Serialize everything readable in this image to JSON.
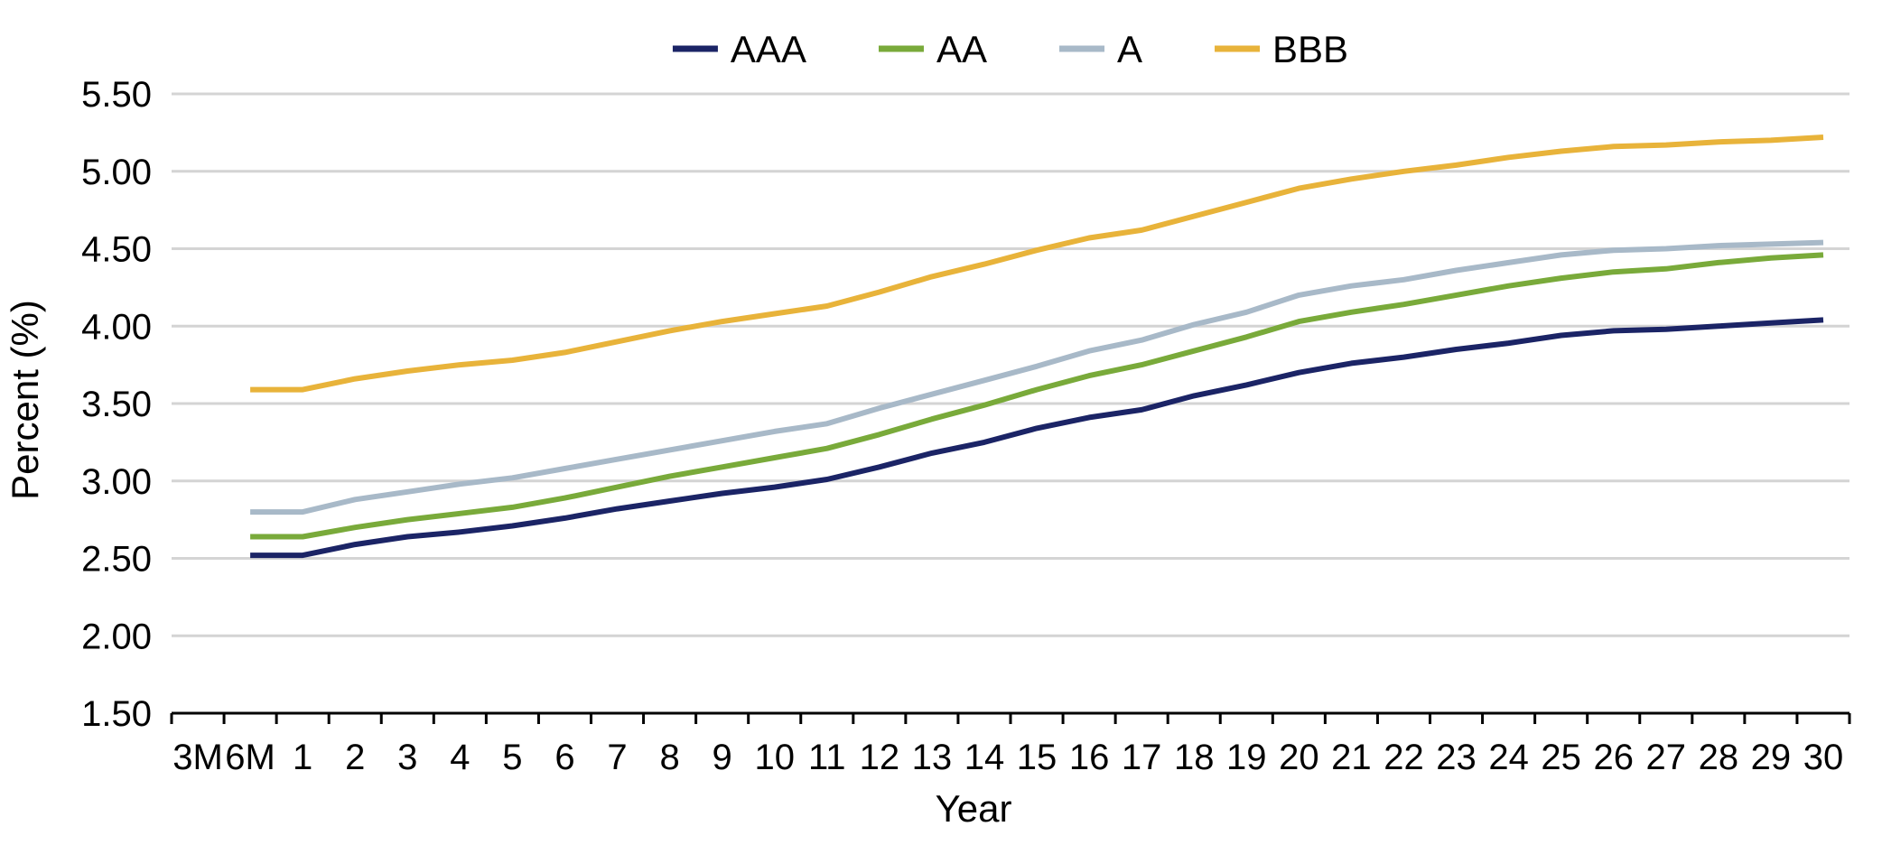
{
  "chart_data": {
    "type": "line",
    "title": "",
    "xlabel": "Year",
    "ylabel": "Percent (%)",
    "categories": [
      "3M",
      "6M",
      "1",
      "2",
      "3",
      "4",
      "5",
      "6",
      "7",
      "8",
      "9",
      "10",
      "11",
      "12",
      "13",
      "14",
      "15",
      "16",
      "17",
      "18",
      "19",
      "20",
      "21",
      "22",
      "23",
      "24",
      "25",
      "26",
      "27",
      "28",
      "29",
      "30"
    ],
    "y_ticks": [
      "1.50",
      "2.00",
      "2.50",
      "3.00",
      "3.50",
      "4.00",
      "4.50",
      "5.00",
      "5.50"
    ],
    "ylim": [
      1.5,
      5.5
    ],
    "grid": true,
    "legend_position": "top",
    "series": [
      {
        "name": "AAA",
        "color": "#1b2466",
        "values": [
          null,
          2.52,
          2.52,
          2.59,
          2.64,
          2.67,
          2.71,
          2.76,
          2.82,
          2.87,
          2.92,
          2.96,
          3.01,
          3.09,
          3.18,
          3.25,
          3.34,
          3.41,
          3.46,
          3.55,
          3.62,
          3.7,
          3.76,
          3.8,
          3.85,
          3.89,
          3.94,
          3.97,
          3.98,
          4.0,
          4.02,
          4.04
        ]
      },
      {
        "name": "AA",
        "color": "#79aa3a",
        "values": [
          null,
          2.64,
          2.64,
          2.7,
          2.75,
          2.79,
          2.83,
          2.89,
          2.96,
          3.03,
          3.09,
          3.15,
          3.21,
          3.3,
          3.4,
          3.49,
          3.59,
          3.68,
          3.75,
          3.84,
          3.93,
          4.03,
          4.09,
          4.14,
          4.2,
          4.26,
          4.31,
          4.35,
          4.37,
          4.41,
          4.44,
          4.46
        ]
      },
      {
        "name": "A",
        "color": "#a8b9c8",
        "values": [
          null,
          2.8,
          2.8,
          2.88,
          2.93,
          2.98,
          3.02,
          3.08,
          3.14,
          3.2,
          3.26,
          3.32,
          3.37,
          3.47,
          3.56,
          3.65,
          3.74,
          3.84,
          3.91,
          4.01,
          4.09,
          4.2,
          4.26,
          4.3,
          4.36,
          4.41,
          4.46,
          4.49,
          4.5,
          4.52,
          4.53,
          4.54
        ]
      },
      {
        "name": "BBB",
        "color": "#e8b33a",
        "values": [
          null,
          3.59,
          3.59,
          3.66,
          3.71,
          3.75,
          3.78,
          3.83,
          3.9,
          3.97,
          4.03,
          4.08,
          4.13,
          4.22,
          4.32,
          4.4,
          4.49,
          4.57,
          4.62,
          4.71,
          4.8,
          4.89,
          4.95,
          5.0,
          5.04,
          5.09,
          5.13,
          5.16,
          5.17,
          5.19,
          5.2,
          5.22
        ]
      }
    ]
  }
}
